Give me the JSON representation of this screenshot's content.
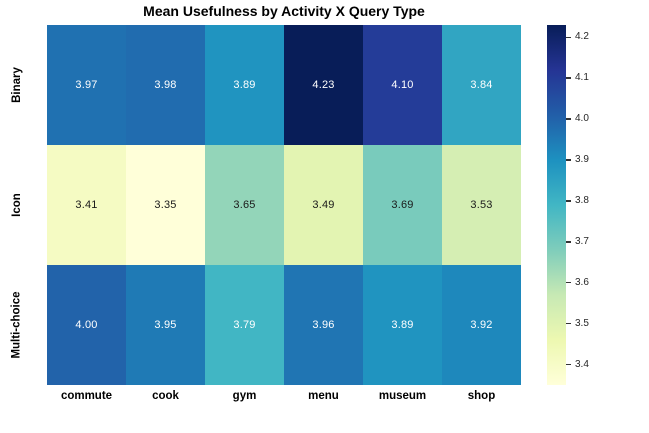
{
  "chart_data": {
    "type": "heatmap",
    "title": "Mean Usefulness by Activity X Query Type",
    "categories": [
      "commute",
      "cook",
      "gym",
      "menu",
      "museum",
      "shop"
    ],
    "row_categories": [
      "Binary",
      "Icon",
      "Multi-choice"
    ],
    "values": [
      [
        3.97,
        3.98,
        3.89,
        4.23,
        4.1,
        3.84
      ],
      [
        3.41,
        3.35,
        3.65,
        3.49,
        3.69,
        3.53
      ],
      [
        4.0,
        3.95,
        3.79,
        3.96,
        3.89,
        3.92
      ]
    ],
    "vmin": 3.35,
    "vmax": 4.23,
    "colormap": "YlGnBu",
    "colormap_stops": [
      "#ffffd9",
      "#edf8b1",
      "#c7e9b4",
      "#7fcdbb",
      "#41b6c4",
      "#1d91c0",
      "#225ea8",
      "#253494",
      "#081d58"
    ],
    "colorbar_ticks": [
      3.4,
      3.5,
      3.6,
      3.7,
      3.8,
      3.9,
      4.0,
      4.1,
      4.2
    ],
    "colorbar_position": "right",
    "grid": false,
    "annotation_decimals": 2,
    "annotation_color_on_dark": "#ffffff",
    "annotation_color_on_light": "#1a1a1a",
    "background_color": "#ffffff"
  }
}
